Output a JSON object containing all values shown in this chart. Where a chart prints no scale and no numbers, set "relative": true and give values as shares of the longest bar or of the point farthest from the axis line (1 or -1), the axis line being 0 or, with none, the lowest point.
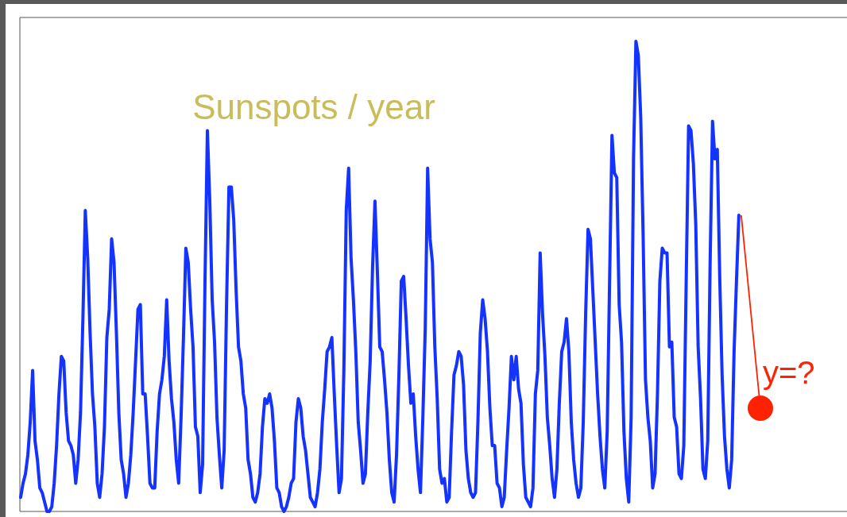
{
  "chart_data": {
    "type": "line",
    "title": "Sunspots / year",
    "relative": true,
    "tick_labels": false,
    "annotations": [
      "y=?"
    ],
    "categories": [
      null,
      null,
      null,
      null,
      null,
      null,
      null,
      null,
      null,
      null,
      null,
      null,
      null,
      null,
      null,
      null,
      null,
      null,
      null,
      null,
      null,
      null,
      null,
      null,
      null,
      null,
      null,
      null,
      null,
      null,
      null,
      null,
      null,
      null,
      null,
      null,
      null,
      null,
      null,
      null,
      null,
      null,
      null,
      null,
      null,
      null,
      null,
      null,
      null,
      null,
      null,
      null,
      null,
      null,
      null,
      null,
      null,
      null,
      null,
      null,
      null,
      null,
      null,
      null,
      null,
      null,
      null,
      null,
      null,
      null,
      null,
      null,
      null,
      null,
      null,
      null,
      null,
      null,
      null,
      null,
      null,
      null,
      null,
      null,
      null,
      null,
      null,
      null,
      null,
      null,
      null,
      null,
      null,
      null,
      null,
      null,
      null,
      null,
      null,
      null,
      null,
      null,
      null,
      null,
      null,
      null,
      null,
      null,
      null,
      null,
      null,
      null,
      null,
      null,
      null,
      null,
      null,
      null,
      null,
      null,
      null,
      null,
      null,
      null,
      null,
      null,
      null,
      null,
      null,
      null,
      null,
      null,
      null,
      null,
      null,
      null,
      null,
      null,
      null,
      null,
      null,
      null,
      null,
      null,
      null,
      null,
      null,
      null,
      null,
      null,
      null,
      null,
      null,
      null,
      null,
      null,
      null,
      null,
      null,
      null,
      null,
      null,
      null,
      null,
      null,
      null,
      null,
      null,
      null,
      null,
      null,
      null,
      null,
      null,
      null,
      null,
      null,
      null,
      null,
      null,
      null,
      null,
      null,
      null,
      null,
      null,
      null,
      null,
      null,
      null,
      null,
      null,
      null,
      null,
      null,
      null,
      null,
      null,
      null,
      null,
      null,
      null,
      null,
      null,
      null,
      null,
      null,
      null,
      null,
      null,
      null,
      null,
      null,
      null,
      null,
      null,
      null,
      null,
      null,
      null,
      null,
      null,
      null,
      null,
      null,
      null,
      null,
      null,
      null,
      null,
      null,
      null,
      null,
      null,
      null,
      null,
      null,
      null,
      null,
      null,
      null,
      null,
      null,
      null,
      null,
      null,
      null,
      null,
      null,
      null,
      null,
      null,
      null,
      null,
      null,
      null,
      null,
      null,
      null,
      null,
      null,
      null,
      null,
      null,
      null,
      null,
      null,
      null,
      null,
      null,
      null,
      null,
      null,
      null,
      null,
      null,
      null,
      null,
      null,
      null,
      null,
      null,
      null,
      null,
      null,
      null,
      null,
      null,
      null,
      null,
      null,
      null,
      null,
      null,
      null,
      null,
      null,
      null,
      null,
      null,
      null
    ],
    "series": [
      {
        "color": "#1433ff",
        "values": [
          0.03,
          0.06,
          0.08,
          0.12,
          0.19,
          0.3,
          0.15,
          0.11,
          0.05,
          0.04,
          0.02,
          0,
          0,
          0.01,
          0.06,
          0.14,
          0.25,
          0.33,
          0.32,
          0.21,
          0.15,
          0.14,
          0.12,
          0.06,
          0.11,
          0.21,
          0.41,
          0.64,
          0.54,
          0.38,
          0.25,
          0.18,
          0.06,
          0.03,
          0.08,
          0.18,
          0.37,
          0.43,
          0.58,
          0.53,
          0.38,
          0.21,
          0.11,
          0.08,
          0.03,
          0.06,
          0.12,
          0.21,
          0.32,
          0.43,
          0.44,
          0.25,
          0.25,
          0.16,
          0.06,
          0.05,
          0.05,
          0.17,
          0.25,
          0.28,
          0.33,
          0.45,
          0.32,
          0.24,
          0.19,
          0.11,
          0.06,
          0.2,
          0.37,
          0.56,
          0.53,
          0.43,
          0.35,
          0.18,
          0.16,
          0.04,
          0.1,
          0.49,
          0.81,
          0.66,
          0.45,
          0.36,
          0.2,
          0.12,
          0.05,
          0.13,
          0.44,
          0.69,
          0.69,
          0.62,
          0.47,
          0.35,
          0.32,
          0.25,
          0.22,
          0.11,
          0.08,
          0.03,
          0.02,
          0.04,
          0.08,
          0.18,
          0.24,
          0.23,
          0.25,
          0.22,
          0.15,
          0.05,
          0.04,
          0.01,
          0,
          0.01,
          0.03,
          0.06,
          0.07,
          0.19,
          0.24,
          0.22,
          0.16,
          0.13,
          0.08,
          0.03,
          0.02,
          0.01,
          0.04,
          0.09,
          0.19,
          0.26,
          0.34,
          0.35,
          0.37,
          0.25,
          0.14,
          0.04,
          0.07,
          0.3,
          0.64,
          0.73,
          0.54,
          0.45,
          0.34,
          0.19,
          0.13,
          0.06,
          0.08,
          0.21,
          0.32,
          0.52,
          0.66,
          0.51,
          0.35,
          0.34,
          0.28,
          0.21,
          0.11,
          0.04,
          0.02,
          0.12,
          0.29,
          0.49,
          0.5,
          0.41,
          0.31,
          0.23,
          0.25,
          0.16,
          0.09,
          0.04,
          0.2,
          0.39,
          0.73,
          0.58,
          0.53,
          0.35,
          0.24,
          0.09,
          0.06,
          0.07,
          0.02,
          0.03,
          0.17,
          0.29,
          0.31,
          0.34,
          0.33,
          0.27,
          0.13,
          0.07,
          0.04,
          0.03,
          0.04,
          0.19,
          0.38,
          0.45,
          0.41,
          0.34,
          0.22,
          0.14,
          0.14,
          0.06,
          0.05,
          0.01,
          0.03,
          0.13,
          0.22,
          0.33,
          0.28,
          0.33,
          0.26,
          0.23,
          0.1,
          0.03,
          0.02,
          0.01,
          0.05,
          0.25,
          0.3,
          0.55,
          0.42,
          0.33,
          0.2,
          0.14,
          0.07,
          0.03,
          0.09,
          0.23,
          0.34,
          0.36,
          0.41,
          0.34,
          0.19,
          0.11,
          0.06,
          0.03,
          0.05,
          0.19,
          0.42,
          0.6,
          0.58,
          0.47,
          0.36,
          0.25,
          0.16,
          0.09,
          0.05,
          0.17,
          0.49,
          0.8,
          0.72,
          0.71,
          0.44,
          0.36,
          0.17,
          0.07,
          0.02,
          0.2,
          0.75,
          1,
          0.97,
          0.84,
          0.59,
          0.28,
          0.2,
          0.15,
          0.05,
          0.08,
          0.25,
          0.49,
          0.56,
          0.55,
          0.55,
          0.35,
          0.36,
          0.2,
          0.18,
          0.08,
          0.07,
          0.14,
          0.49,
          0.82,
          0.81,
          0.74,
          0.61,
          0.35,
          0.24,
          0.09,
          0.07,
          0.15,
          0.53,
          0.83,
          0.75,
          0.77,
          0.5,
          0.29,
          0.16,
          0.09,
          0.05,
          0.11,
          0.34,
          0.49,
          0.63
        ]
      }
    ]
  }
}
